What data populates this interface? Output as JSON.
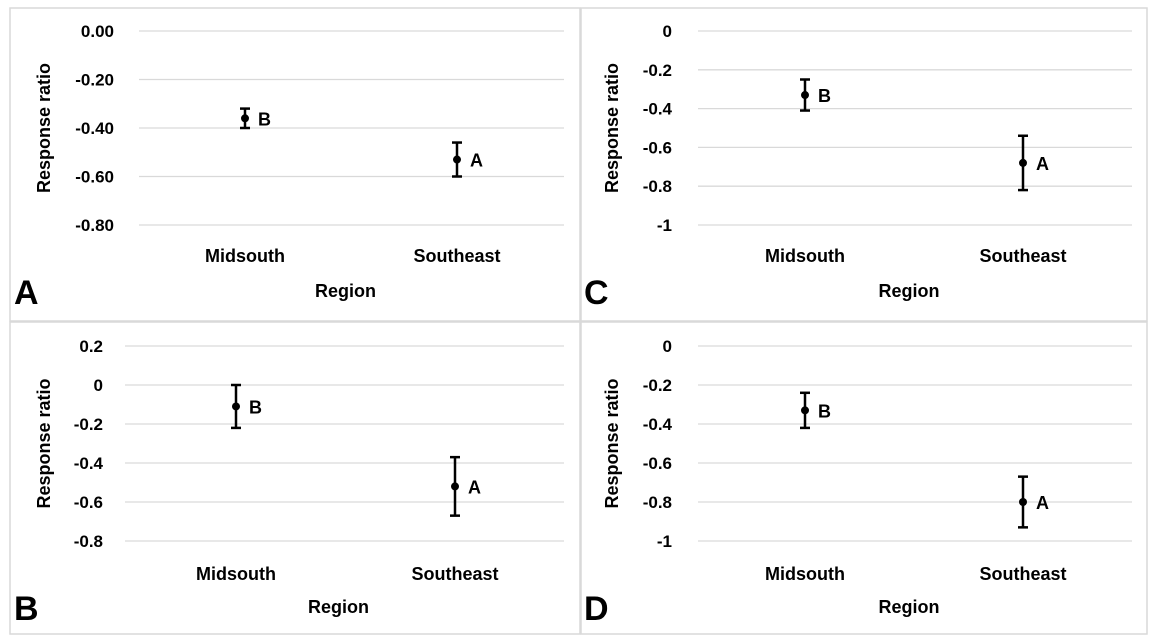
{
  "chart_data": [
    {
      "panel": "A",
      "type": "scatter",
      "xlabel": "Region",
      "ylabel": "Response ratio",
      "categories": [
        "Midsouth",
        "Southeast"
      ],
      "ylim": [
        -0.8,
        0.0
      ],
      "yticks": [
        "0.00",
        "-0.20",
        "-0.40",
        "-0.60",
        "-0.80"
      ],
      "grid": true,
      "points": [
        {
          "category": "Midsouth",
          "y": -0.36,
          "err_low": -0.4,
          "err_high": -0.32,
          "label": "B"
        },
        {
          "category": "Southeast",
          "y": -0.53,
          "err_low": -0.6,
          "err_high": -0.46,
          "label": "A"
        }
      ]
    },
    {
      "panel": "C",
      "type": "scatter",
      "xlabel": "Region",
      "ylabel": "Response ratio",
      "categories": [
        "Midsouth",
        "Southeast"
      ],
      "ylim": [
        -1.0,
        0.0
      ],
      "yticks": [
        "0",
        "-0.2",
        "-0.4",
        "-0.6",
        "-0.8",
        "-1"
      ],
      "grid": true,
      "points": [
        {
          "category": "Midsouth",
          "y": -0.33,
          "err_low": -0.41,
          "err_high": -0.25,
          "label": "B"
        },
        {
          "category": "Southeast",
          "y": -0.68,
          "err_low": -0.82,
          "err_high": -0.54,
          "label": "A"
        }
      ]
    },
    {
      "panel": "B",
      "type": "scatter",
      "xlabel": "Region",
      "ylabel": "Response ratio",
      "categories": [
        "Midsouth",
        "Southeast"
      ],
      "ylim": [
        -0.8,
        0.2
      ],
      "yticks": [
        "0.2",
        "0",
        "-0.2",
        "-0.4",
        "-0.6",
        "-0.8"
      ],
      "grid": true,
      "points": [
        {
          "category": "Midsouth",
          "y": -0.11,
          "err_low": -0.22,
          "err_high": 0.0,
          "label": "B"
        },
        {
          "category": "Southeast",
          "y": -0.52,
          "err_low": -0.67,
          "err_high": -0.37,
          "label": "A"
        }
      ]
    },
    {
      "panel": "D",
      "type": "scatter",
      "xlabel": "Region",
      "ylabel": "Response ratio",
      "categories": [
        "Midsouth",
        "Southeast"
      ],
      "ylim": [
        -1.0,
        0.0
      ],
      "yticks": [
        "0",
        "-0.2",
        "-0.4",
        "-0.6",
        "-0.8",
        "-1"
      ],
      "grid": true,
      "points": [
        {
          "category": "Midsouth",
          "y": -0.33,
          "err_low": -0.42,
          "err_high": -0.24,
          "label": "B"
        },
        {
          "category": "Southeast",
          "y": -0.8,
          "err_low": -0.93,
          "err_high": -0.67,
          "label": "A"
        }
      ]
    }
  ]
}
